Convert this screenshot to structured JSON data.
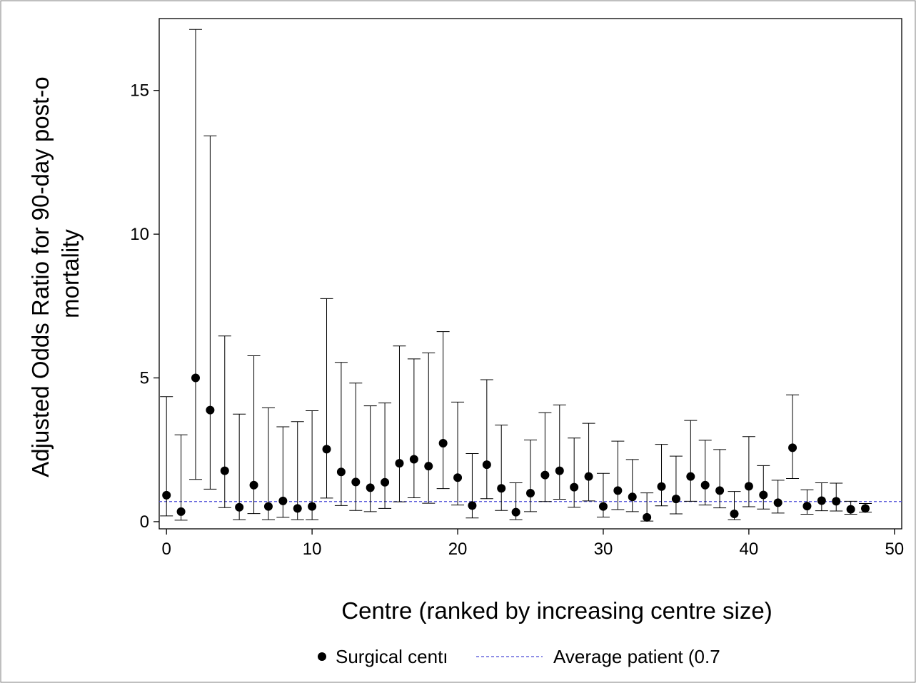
{
  "chart_data": {
    "type": "scatter",
    "ylabel_lines": [
      "Adjusted Odds Ratio for 90-day post-o",
      "mortality"
    ],
    "xlabel": "Centre (ranked by increasing centre size)",
    "xlim": [
      -0.5,
      50.5
    ],
    "ylim": [
      -0.25,
      17.5
    ],
    "x_ticks": [
      0,
      10,
      20,
      30,
      40,
      50
    ],
    "y_ticks": [
      0,
      5,
      10,
      15
    ],
    "reference_line": {
      "value": 0.7,
      "color": "#4a4ad8",
      "style": "dashed"
    },
    "legend": {
      "placement": "bottom",
      "items": [
        {
          "marker": "dot",
          "label": "Surgical centı"
        },
        {
          "marker": "dashed-line",
          "label": "Average patient (0.7"
        }
      ]
    },
    "series": [
      {
        "marker": "dot",
        "x": [
          0,
          1,
          2,
          3,
          4,
          5,
          6,
          7,
          8,
          9,
          10,
          11,
          12,
          13,
          14,
          15,
          16,
          17,
          18,
          19,
          20,
          21,
          22,
          23,
          24,
          25,
          26,
          27,
          28,
          29,
          30,
          31,
          32,
          33,
          34,
          35,
          36,
          37,
          38,
          39,
          40,
          41,
          42,
          43,
          44,
          45,
          46,
          47,
          48
        ],
        "y": [
          0.92,
          0.35,
          5.0,
          3.88,
          1.77,
          0.5,
          1.27,
          0.53,
          0.72,
          0.46,
          0.53,
          2.52,
          1.73,
          1.38,
          1.18,
          1.37,
          2.03,
          2.17,
          1.93,
          2.73,
          1.53,
          0.56,
          1.98,
          1.16,
          0.33,
          0.99,
          1.62,
          1.77,
          1.2,
          1.57,
          0.53,
          1.08,
          0.86,
          0.15,
          1.22,
          0.79,
          1.57,
          1.27,
          1.08,
          0.27,
          1.23,
          0.93,
          0.66,
          2.57,
          0.54,
          0.73,
          0.71,
          0.43,
          0.46
        ],
        "lower": [
          0.2,
          0.05,
          1.47,
          1.13,
          0.49,
          0.07,
          0.28,
          0.07,
          0.15,
          0.07,
          0.07,
          0.82,
          0.56,
          0.39,
          0.35,
          0.46,
          0.69,
          0.83,
          0.64,
          1.15,
          0.58,
          0.13,
          0.8,
          0.39,
          0.07,
          0.35,
          0.7,
          0.78,
          0.5,
          0.72,
          0.16,
          0.42,
          0.35,
          0.02,
          0.55,
          0.27,
          0.71,
          0.58,
          0.48,
          0.07,
          0.52,
          0.44,
          0.3,
          1.5,
          0.26,
          0.38,
          0.37,
          0.26,
          0.33
        ],
        "upper": [
          4.35,
          3.02,
          17.12,
          13.42,
          6.46,
          3.74,
          5.77,
          3.96,
          3.3,
          3.48,
          3.86,
          7.76,
          5.54,
          4.82,
          4.03,
          4.13,
          6.11,
          5.66,
          5.87,
          6.61,
          4.16,
          2.37,
          4.94,
          3.36,
          1.35,
          2.84,
          3.79,
          4.06,
          2.91,
          3.42,
          1.68,
          2.8,
          2.16,
          1.0,
          2.69,
          2.28,
          3.52,
          2.83,
          2.51,
          1.05,
          2.96,
          1.95,
          1.44,
          4.41,
          1.11,
          1.35,
          1.34,
          0.71,
          0.63
        ]
      }
    ]
  }
}
